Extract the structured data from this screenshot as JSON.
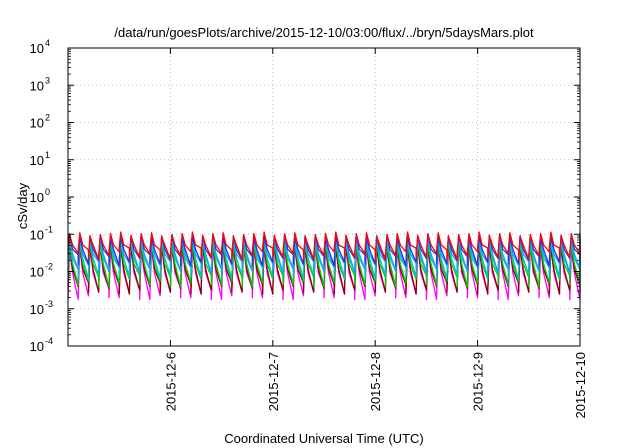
{
  "chart_data": {
    "type": "line",
    "title": "/data/run/goesPlots/archive/2015-12-10/03:00/flux/../bryn/5daysMars.plot",
    "xlabel": "Coordinated Universal Time (UTC)",
    "ylabel": "cSv/day",
    "yscale": "log",
    "ylim": [
      0.0001,
      10000
    ],
    "y_ticks": [
      {
        "value": 0.0001,
        "mantissa": "10",
        "exp": "-4"
      },
      {
        "value": 0.001,
        "mantissa": "10",
        "exp": "-3"
      },
      {
        "value": 0.01,
        "mantissa": "10",
        "exp": "-2"
      },
      {
        "value": 0.1,
        "mantissa": "10",
        "exp": "-1"
      },
      {
        "value": 1,
        "mantissa": "10",
        "exp": "0"
      },
      {
        "value": 10,
        "mantissa": "10",
        "exp": "1"
      },
      {
        "value": 100,
        "mantissa": "10",
        "exp": "2"
      },
      {
        "value": 1000,
        "mantissa": "10",
        "exp": "3"
      },
      {
        "value": 10000,
        "mantissa": "10",
        "exp": "4"
      }
    ],
    "xlim": [
      "2015-12-05 03:00",
      "2015-12-10 03:00"
    ],
    "x_ticks": [
      "2015-12-6",
      "2015-12-7",
      "2015-12-8",
      "2015-12-9",
      "2015-12-10"
    ],
    "grid": true,
    "cycles_per_day": 10,
    "series": [
      {
        "color": "#ff00ff",
        "peak": 0.045,
        "trough": 0.0025
      },
      {
        "color": "#8b0000",
        "peak": 0.05,
        "trough": 0.0035
      },
      {
        "color": "#00d000",
        "peak": 0.06,
        "trough": 0.0055
      },
      {
        "color": "#00c8c8",
        "peak": 0.07,
        "trough": 0.009
      },
      {
        "color": "#1a9fff",
        "peak": 0.08,
        "trough": 0.013
      },
      {
        "color": "#3030e0",
        "peak": 0.09,
        "trough": 0.02
      },
      {
        "color": "#ff0000",
        "peak": 0.1,
        "trough": 0.03
      }
    ]
  }
}
